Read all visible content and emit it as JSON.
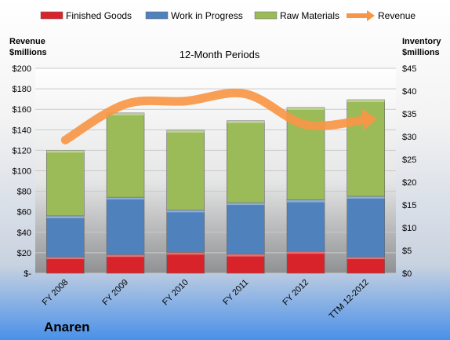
{
  "chart_data": {
    "type": "bar",
    "stacked": true,
    "title": "12-Month Periods",
    "company": "Anaren",
    "categories": [
      "FY 2008",
      "FY 2009",
      "FY 2010",
      "FY 2011",
      "FY 2012",
      "TTM 12-2012"
    ],
    "series": [
      {
        "name": "Finished Goods",
        "axis": "right",
        "color": "#d8232a",
        "values": [
          3.6,
          4.1,
          4.6,
          4.2,
          4.8,
          3.6
        ]
      },
      {
        "name": "Work in Progress",
        "axis": "right",
        "color": "#4f81bd",
        "values": [
          9.0,
          12.6,
          9.3,
          11.3,
          11.3,
          13.3
        ]
      },
      {
        "name": "Raw Materials",
        "axis": "right",
        "color": "#9bbb59",
        "values": [
          14.4,
          18.5,
          17.5,
          18.0,
          20.3,
          21.2
        ]
      },
      {
        "name": "Revenue",
        "axis": "left",
        "type": "line",
        "color": "#f79646",
        "values": [
          130,
          165,
          168,
          175,
          145,
          150
        ]
      }
    ],
    "left_axis": {
      "label_line1": "Revenue",
      "label_line2": "$millions",
      "ylim": [
        0,
        200
      ],
      "tick_values": [
        0,
        20,
        40,
        60,
        80,
        100,
        120,
        140,
        160,
        180,
        200
      ],
      "tick_labels": [
        "$-",
        "$20",
        "$40",
        "$60",
        "$80",
        "$100",
        "$120",
        "$140",
        "$160",
        "$180",
        "$200"
      ]
    },
    "right_axis": {
      "label_line1": "Inventory",
      "label_line2": "$millions",
      "ylim": [
        0,
        45
      ],
      "tick_values": [
        0,
        5,
        10,
        15,
        20,
        25,
        30,
        35,
        40,
        45
      ],
      "tick_labels": [
        "$0",
        "$5",
        "$10",
        "$15",
        "$20",
        "$25",
        "$30",
        "$35",
        "$40",
        "$45"
      ]
    },
    "legend_position": "top",
    "grid": true
  }
}
